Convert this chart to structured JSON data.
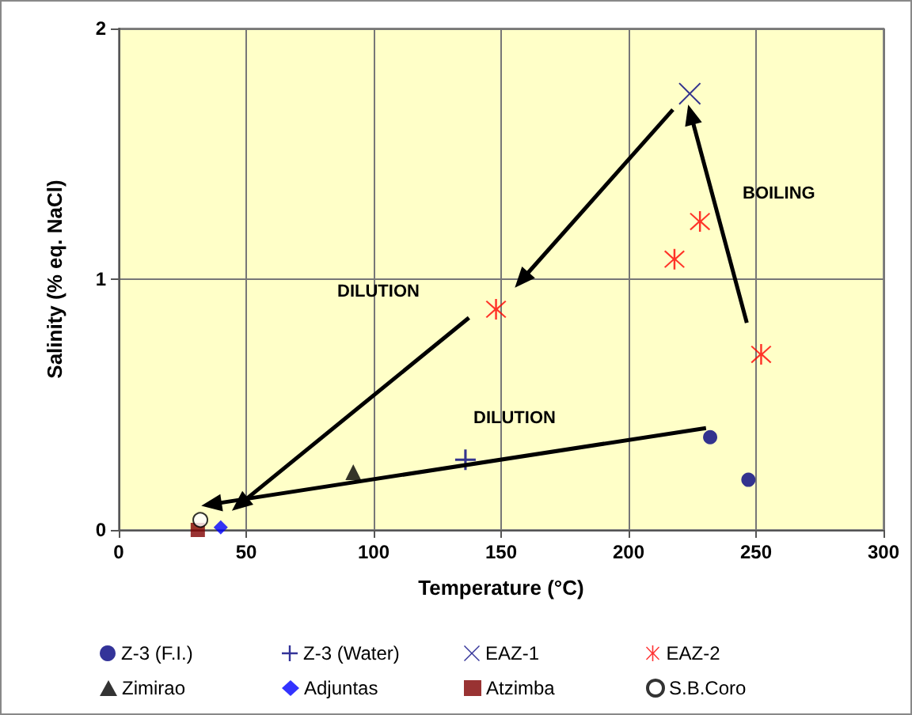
{
  "chart_data": {
    "type": "scatter",
    "xlabel": "Temperature (°C)",
    "ylabel": "Salinity (% eq. NaCl)",
    "xlim": [
      0,
      300
    ],
    "xticks": [
      0,
      50,
      100,
      150,
      200,
      250,
      300
    ],
    "ylim": [
      0,
      2
    ],
    "yticks": [
      0,
      1,
      2
    ],
    "grid": true,
    "legend": "bottom",
    "series": [
      {
        "name": "Z-3 (F.I.)",
        "color": "#000080",
        "marker": "circle",
        "x": [
          232,
          247
        ],
        "values": [
          0.37,
          0.2
        ]
      },
      {
        "name": "Z-3 (Water)",
        "color": "#000080",
        "marker": "cross",
        "x": [
          136
        ],
        "values": [
          0.28
        ]
      },
      {
        "name": "EAZ-1",
        "color": "#000080",
        "marker": "x",
        "x": [
          224
        ],
        "values": [
          1.74
        ]
      },
      {
        "name": "EAZ-2",
        "color": "#ff0000",
        "marker": "star",
        "x": [
          148,
          218,
          228,
          252
        ],
        "values": [
          0.88,
          1.08,
          1.23,
          0.7
        ]
      },
      {
        "name": "Zimirao",
        "color": "#000000",
        "marker": "triangle",
        "x": [
          92
        ],
        "values": [
          0.23
        ]
      },
      {
        "name": "Adjuntas",
        "color": "#0000ff",
        "marker": "diamond",
        "x": [
          40
        ],
        "values": [
          0.01
        ]
      },
      {
        "name": "Atzimba",
        "color": "#800000",
        "marker": "square",
        "x": [
          31
        ],
        "values": [
          0
        ]
      },
      {
        "name": "S.B.Coro",
        "color": "#ffffff",
        "marker": "circle",
        "x": [
          32
        ],
        "values": [
          0.04
        ]
      }
    ],
    "annotations": [
      "DILUTION",
      "DILUTION",
      "BOILING"
    ]
  }
}
